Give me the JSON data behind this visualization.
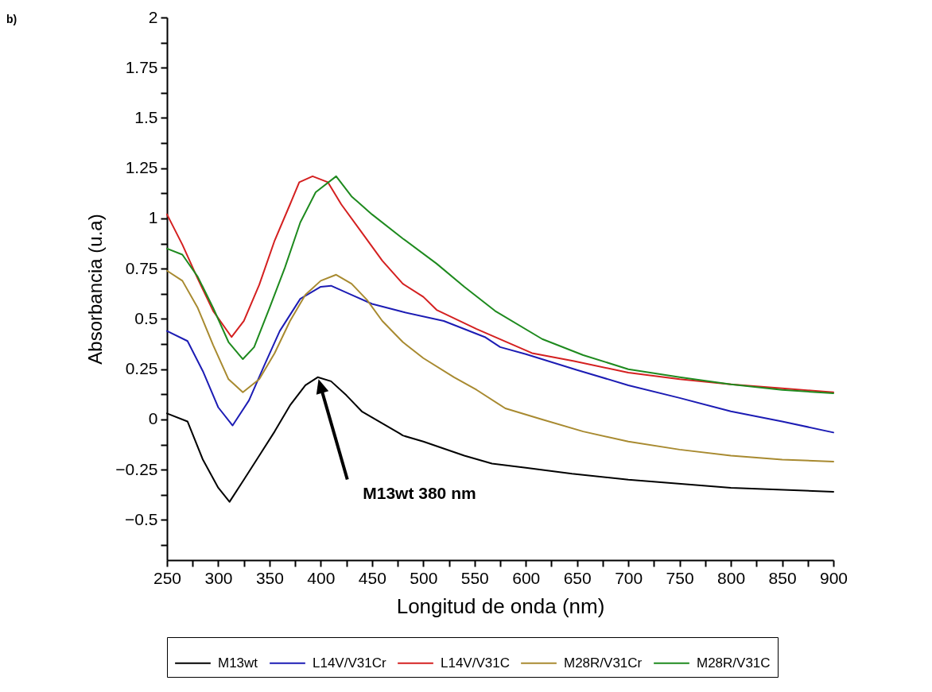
{
  "chart_data": {
    "type": "line",
    "xlabel": "Longitud de onda (nm)",
    "ylabel": "Absorbancia (u.a)",
    "xlim": [
      250,
      900
    ],
    "ylim": [
      -0.7,
      2
    ],
    "xticks": [
      250,
      {
        "value": 275,
        "label": null
      },
      300,
      {
        "value": 325,
        "label": null
      },
      350,
      {
        "value": 375,
        "label": null
      },
      400,
      {
        "value": 425,
        "label": null
      },
      450,
      {
        "value": 475,
        "label": null
      },
      500,
      {
        "value": 525,
        "label": null
      },
      550,
      {
        "value": 575,
        "label": null
      },
      600,
      {
        "value": 625,
        "label": null
      },
      650,
      {
        "value": 675,
        "label": null
      },
      700,
      {
        "value": 725,
        "label": null
      },
      750,
      {
        "value": 775,
        "label": null
      },
      800,
      {
        "value": 825,
        "label": null
      },
      850,
      {
        "value": 875,
        "label": null
      },
      900
    ],
    "yticks": [
      {
        "value": -0.625,
        "label": null
      },
      -0.5,
      {
        "value": -0.375,
        "label": null
      },
      -0.25,
      {
        "value": -0.125,
        "label": null
      },
      0,
      {
        "value": 0.125,
        "label": null
      },
      0.25,
      {
        "value": 0.375,
        "label": null
      },
      0.5,
      {
        "value": 0.625,
        "label": null
      },
      0.75,
      {
        "value": 0.875,
        "label": null
      },
      1,
      {
        "value": 1.125,
        "label": null
      },
      1.25,
      {
        "value": 1.375,
        "label": null
      },
      1.5,
      {
        "value": 1.625,
        "label": null
      },
      1.75,
      {
        "value": 1.875,
        "label": null
      },
      2
    ],
    "legend": "bottom",
    "annotations": [
      "b)",
      "M13wt 380 nm"
    ],
    "series": [
      {
        "name": "M13wt",
        "color": "#000000",
        "x": [
          250,
          270,
          285,
          300,
          311,
          325,
          340,
          355,
          370,
          385,
          397,
          410,
          425,
          440,
          460,
          477,
          480,
          500,
          540,
          567,
          600,
          645,
          700,
          800,
          900
        ],
        "values": [
          0.03,
          -0.01,
          -0.2,
          -0.34,
          -0.41,
          -0.3,
          -0.18,
          -0.06,
          0.07,
          0.17,
          0.21,
          0.19,
          0.12,
          0.04,
          -0.02,
          -0.07,
          -0.08,
          -0.11,
          -0.18,
          -0.22,
          -0.24,
          -0.27,
          -0.3,
          -0.34,
          -0.36
        ]
      },
      {
        "name": "L14V/V31Cr",
        "color": "#1c1cb4",
        "x": [
          250,
          270,
          285,
          300,
          314,
          330,
          345,
          360,
          380,
          400,
          410,
          430,
          450,
          480,
          520,
          560,
          575,
          600,
          650,
          700,
          750,
          800,
          850,
          900
        ],
        "values": [
          0.44,
          0.39,
          0.24,
          0.06,
          -0.03,
          0.095,
          0.27,
          0.44,
          0.6,
          0.66,
          0.665,
          0.62,
          0.575,
          0.535,
          0.49,
          0.41,
          0.36,
          0.325,
          0.246,
          0.17,
          0.107,
          0.04,
          -0.01,
          -0.065
        ]
      },
      {
        "name": "L14V/V31C",
        "color": "#d42020",
        "x": [
          250,
          265,
          280,
          295,
          313,
          325,
          340,
          355,
          370,
          379,
          392,
          407,
          420,
          440,
          460,
          480,
          500,
          513,
          552,
          606,
          647,
          700,
          750,
          800,
          850,
          900
        ],
        "values": [
          1.02,
          0.87,
          0.7,
          0.54,
          0.41,
          0.49,
          0.67,
          0.89,
          1.07,
          1.18,
          1.21,
          1.18,
          1.07,
          0.93,
          0.79,
          0.675,
          0.61,
          0.545,
          0.45,
          0.33,
          0.29,
          0.233,
          0.2,
          0.175,
          0.155,
          0.135
        ]
      },
      {
        "name": "M28R/V31Cr",
        "color": "#a88a30",
        "x": [
          250,
          265,
          280,
          295,
          310,
          324,
          340,
          355,
          370,
          385,
          400,
          415,
          430,
          445,
          460,
          480,
          500,
          530,
          552,
          580,
          616,
          656,
          700,
          750,
          800,
          850,
          900
        ],
        "values": [
          0.74,
          0.69,
          0.555,
          0.37,
          0.2,
          0.135,
          0.2,
          0.33,
          0.49,
          0.62,
          0.69,
          0.72,
          0.675,
          0.595,
          0.49,
          0.385,
          0.305,
          0.21,
          0.147,
          0.055,
          0.0,
          -0.06,
          -0.11,
          -0.15,
          -0.18,
          -0.2,
          -0.21
        ]
      },
      {
        "name": "M28R/V31C",
        "color": "#1e8a1e",
        "x": [
          250,
          265,
          280,
          295,
          310,
          324,
          335,
          350,
          365,
          380,
          395,
          415,
          430,
          450,
          480,
          513,
          540,
          570,
          616,
          656,
          700,
          750,
          800,
          850,
          900
        ],
        "values": [
          0.85,
          0.82,
          0.71,
          0.555,
          0.385,
          0.3,
          0.36,
          0.555,
          0.755,
          0.98,
          1.13,
          1.21,
          1.11,
          1.02,
          0.9,
          0.775,
          0.66,
          0.54,
          0.4,
          0.32,
          0.25,
          0.21,
          0.175,
          0.147,
          0.13
        ]
      }
    ]
  }
}
